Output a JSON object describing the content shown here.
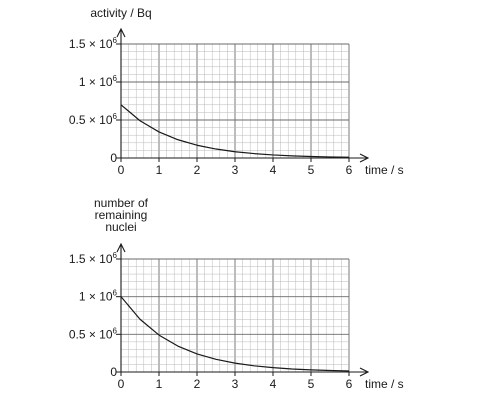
{
  "chart_data": [
    {
      "type": "line",
      "ylabel_lines": [
        "activity / Bq"
      ],
      "xlabel": "time / s",
      "xlim": [
        0,
        6
      ],
      "ylim": [
        0,
        1500000
      ],
      "x_ticks": [
        "0",
        "1",
        "2",
        "3",
        "4",
        "5",
        "6"
      ],
      "y_ticks": [
        {
          "value": 0,
          "mantissa": "0",
          "exp": ""
        },
        {
          "value": 500000,
          "mantissa": "0.5 × 10",
          "exp": "6"
        },
        {
          "value": 1000000,
          "mantissa": "1 × 10",
          "exp": "6"
        },
        {
          "value": 1500000,
          "mantissa": "1.5 × 10",
          "exp": "6"
        }
      ],
      "series": [
        {
          "x": [
            0,
            0.5,
            1,
            1.5,
            2,
            2.5,
            3,
            3.5,
            4,
            4.5,
            5,
            5.5,
            6
          ],
          "y": [
            700000,
            490000,
            343000,
            240000,
            168000,
            118000,
            82000,
            58000,
            40000,
            28000,
            20000,
            14000,
            10000
          ]
        }
      ],
      "grid": true
    },
    {
      "type": "line",
      "ylabel_lines": [
        "number of",
        "remaining",
        "nuclei"
      ],
      "xlabel": "time / s",
      "xlim": [
        0,
        6
      ],
      "ylim": [
        0,
        1500000
      ],
      "x_ticks": [
        "0",
        "1",
        "2",
        "3",
        "4",
        "5",
        "6"
      ],
      "y_ticks": [
        {
          "value": 0,
          "mantissa": "0",
          "exp": ""
        },
        {
          "value": 500000,
          "mantissa": "0.5 × 10",
          "exp": "6"
        },
        {
          "value": 1000000,
          "mantissa": "1 × 10",
          "exp": "6"
        },
        {
          "value": 1500000,
          "mantissa": "1.5 × 10",
          "exp": "6"
        }
      ],
      "series": [
        {
          "x": [
            0,
            0.5,
            1,
            1.5,
            2,
            2.5,
            3,
            3.5,
            4,
            4.5,
            5,
            5.5,
            6
          ],
          "y": [
            1000000,
            700000,
            490000,
            343000,
            240000,
            168000,
            118000,
            82000,
            58000,
            40000,
            28000,
            20000,
            14000
          ]
        }
      ],
      "grid": true
    }
  ]
}
